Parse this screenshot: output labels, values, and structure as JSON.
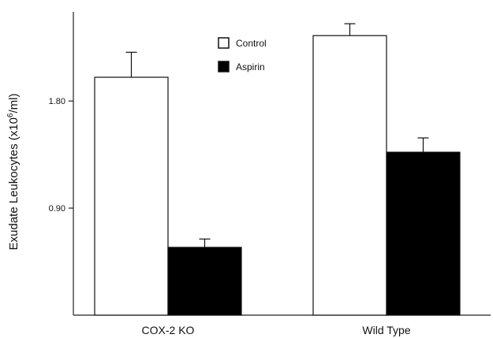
{
  "chart_data": {
    "type": "bar",
    "categories": [
      "COX-2 KO",
      "Wild Type"
    ],
    "series": [
      {
        "name": "Control",
        "values": [
          2.0,
          2.35
        ],
        "errors": [
          0.21,
          0.1
        ],
        "color": "#ffffff"
      },
      {
        "name": "Aspirin",
        "values": [
          0.57,
          1.37
        ],
        "errors": [
          0.07,
          0.12
        ],
        "color": "#000000"
      }
    ],
    "yticks": [
      0.9,
      1.8
    ],
    "ytick_labels": [
      "0.90",
      "1.80"
    ],
    "ylabel": {
      "text": "Exudate Leukocytes (x10",
      "sup": "6",
      "unit": "/ml)"
    },
    "ylim": [
      0,
      2.55
    ],
    "grid": false,
    "legend_position": "top-center"
  }
}
